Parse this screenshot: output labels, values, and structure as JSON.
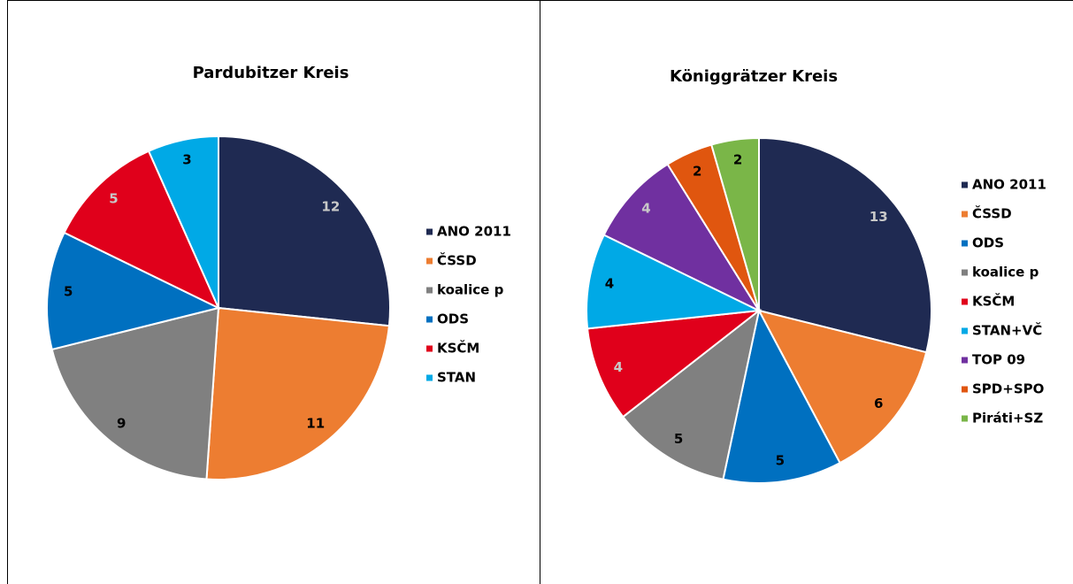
{
  "chart_data": [
    {
      "type": "pie",
      "title": "Pardubitzer Kreis",
      "categories": [
        "ANO 2011",
        "ČSSD",
        "koalice p",
        "ODS",
        "KSČM",
        "STAN"
      ],
      "values": [
        12,
        11,
        9,
        5,
        5,
        3
      ],
      "colors": [
        "#1f2a52",
        "#ed7d31",
        "#808080",
        "#0070c0",
        "#e0001b",
        "#00a9e6"
      ],
      "legend": "right"
    },
    {
      "type": "pie",
      "title": "Königgrätzer Kreis",
      "categories": [
        "ANO 2011",
        "ČSSD",
        "ODS",
        "koalice p",
        "KSČM",
        "STAN+VČ",
        "TOP 09",
        "SPD+SPO",
        "Piráti+SZ"
      ],
      "values": [
        13,
        6,
        5,
        5,
        4,
        4,
        4,
        2,
        2
      ],
      "colors": [
        "#1f2a52",
        "#ed7d31",
        "#0070c0",
        "#808080",
        "#e0001b",
        "#00a9e6",
        "#7030a0",
        "#e0560f",
        "#7ab648"
      ],
      "legend": "right"
    }
  ]
}
